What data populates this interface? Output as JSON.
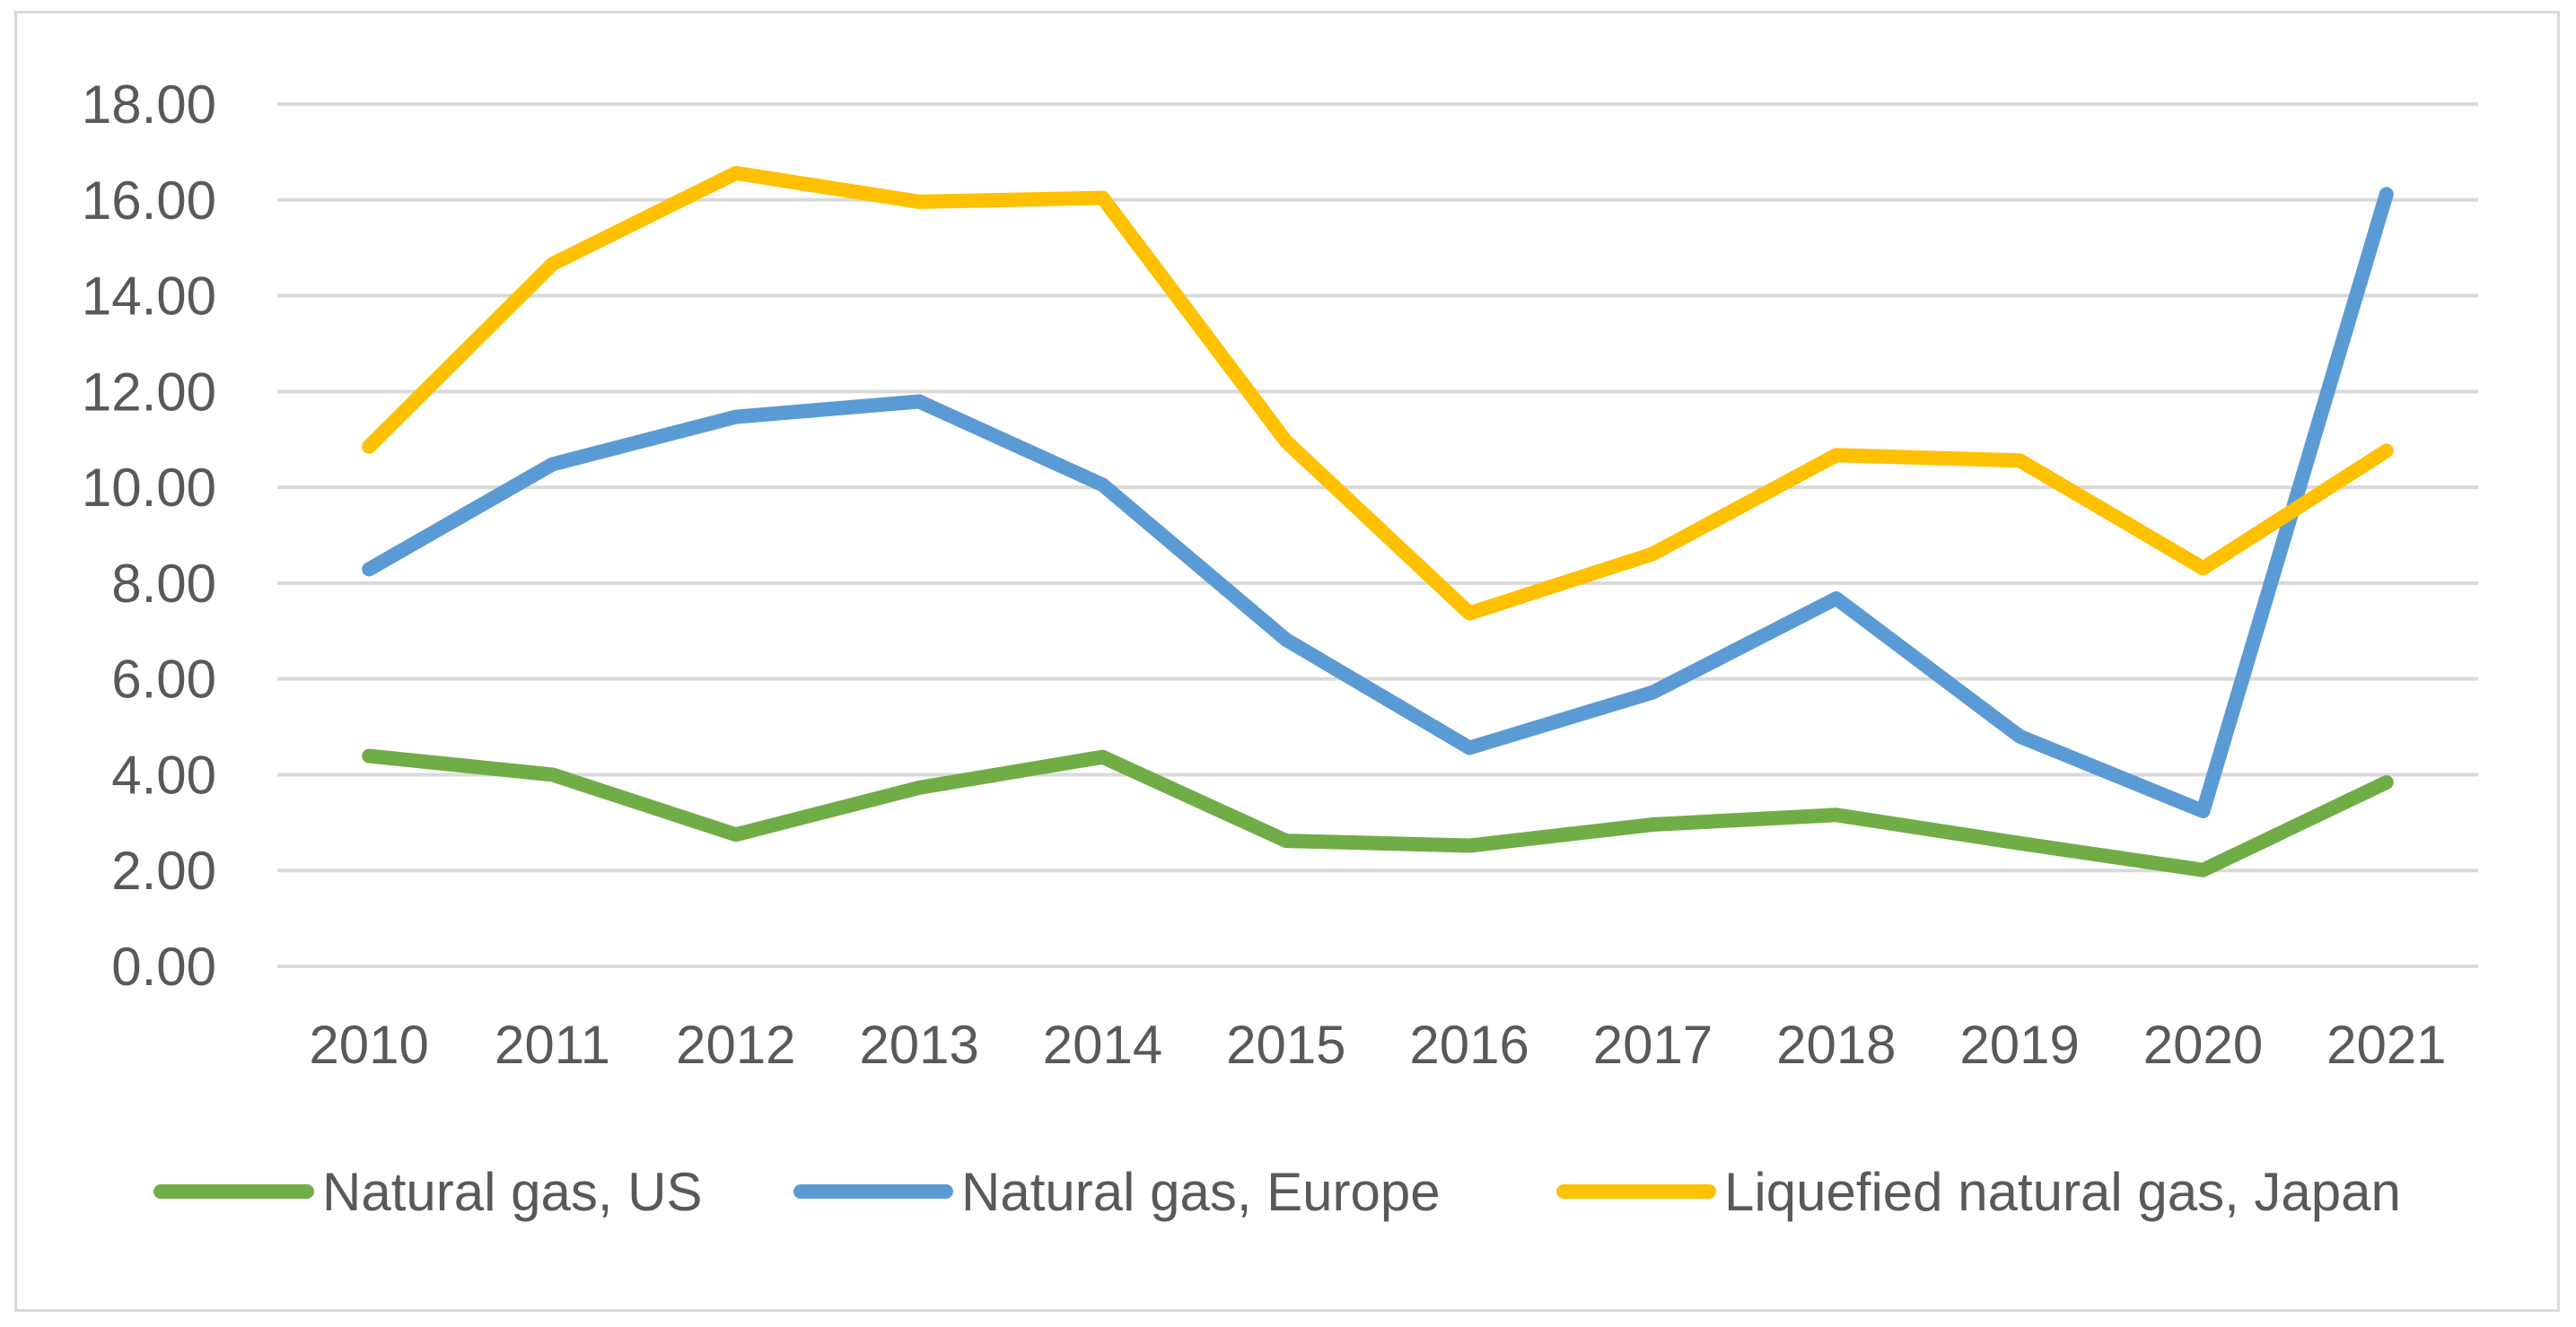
{
  "chart_data": {
    "type": "line",
    "title": "",
    "xlabel": "",
    "ylabel": "",
    "categories": [
      "2010",
      "2011",
      "2012",
      "2013",
      "2014",
      "2015",
      "2016",
      "2017",
      "2018",
      "2019",
      "2020",
      "2021"
    ],
    "ylim": [
      0,
      18
    ],
    "yticks": [
      "0.00",
      "2.00",
      "4.00",
      "6.00",
      "8.00",
      "10.00",
      "12.00",
      "14.00",
      "16.00",
      "18.00"
    ],
    "grid": true,
    "legend_position": "bottom",
    "series": [
      {
        "name": "Natural gas, US",
        "color": "#70AD47",
        "values": [
          4.39,
          4.0,
          2.75,
          3.73,
          4.37,
          2.62,
          2.52,
          2.96,
          3.16,
          2.57,
          2.01,
          3.84
        ]
      },
      {
        "name": "Natural gas, Europe",
        "color": "#5B9BD5",
        "values": [
          8.29,
          10.48,
          11.47,
          11.79,
          10.05,
          6.82,
          4.56,
          5.72,
          7.68,
          4.8,
          3.24,
          16.12
        ]
      },
      {
        "name": "Liquefied natural gas, Japan",
        "color": "#FFC000",
        "values": [
          10.85,
          14.66,
          16.56,
          15.96,
          16.04,
          10.96,
          7.37,
          8.61,
          10.67,
          10.56,
          8.31,
          10.76
        ]
      }
    ]
  }
}
